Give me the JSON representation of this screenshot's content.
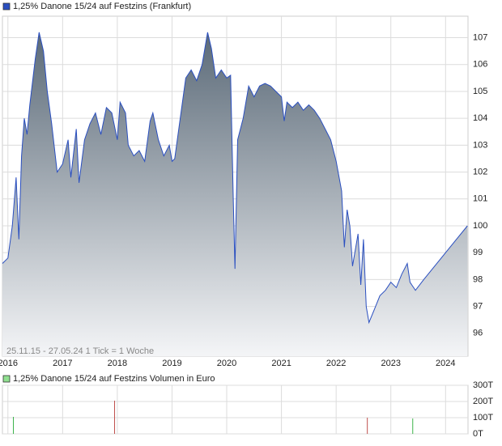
{
  "chart_data": [
    {
      "type": "area",
      "series": [
        {
          "name": "1,25% Danone 15/24 auf Festzins (Frankfurt)",
          "color": "#2a4fc0",
          "values": [
            98.6,
            98.8,
            100.0,
            101.8,
            99.5,
            102.6,
            104.0,
            103.4,
            104.5,
            106.2,
            107.2,
            106.5,
            105.0,
            103.8,
            102.0,
            102.3,
            103.2,
            101.8,
            103.6,
            101.6,
            103.2,
            103.8,
            104.2,
            103.4,
            104.4,
            104.2,
            103.2,
            104.6,
            104.2,
            103.0,
            102.6,
            102.8,
            102.4,
            103.9,
            104.2,
            103.2,
            102.6,
            103.0,
            102.4,
            102.5,
            104.0,
            105.5,
            105.8,
            105.4,
            106.0,
            107.2,
            106.6,
            105.5,
            105.8,
            105.5,
            105.6,
            101.0,
            98.4,
            103.2,
            104.0,
            105.2,
            104.8,
            105.2,
            105.3,
            105.2,
            105.0,
            104.8,
            103.9,
            104.6,
            104.4,
            104.6,
            104.3,
            104.5,
            104.3,
            104.0,
            103.6,
            103.2,
            102.4,
            101.3,
            99.2,
            100.6,
            100.0,
            98.5,
            99.7,
            97.8,
            99.5,
            97.0,
            96.4,
            96.9,
            97.4,
            97.6,
            97.9,
            97.7,
            98.2,
            98.6,
            97.9,
            97.6,
            98.0,
            98.5,
            99.0,
            99.5,
            100.0
          ]
        }
      ],
      "x": [
        2015.9,
        2016.0,
        2016.08,
        2016.15,
        2016.2,
        2016.25,
        2016.3,
        2016.35,
        2016.4,
        2016.5,
        2016.57,
        2016.65,
        2016.72,
        2016.8,
        2016.9,
        2017.0,
        2017.1,
        2017.15,
        2017.25,
        2017.3,
        2017.4,
        2017.5,
        2017.6,
        2017.7,
        2017.8,
        2017.9,
        2018.0,
        2018.05,
        2018.15,
        2018.2,
        2018.3,
        2018.4,
        2018.5,
        2018.6,
        2018.65,
        2018.75,
        2018.85,
        2018.95,
        2019.0,
        2019.05,
        2019.15,
        2019.25,
        2019.35,
        2019.45,
        2019.55,
        2019.65,
        2019.72,
        2019.8,
        2019.9,
        2020.0,
        2020.07,
        2020.12,
        2020.15,
        2020.2,
        2020.3,
        2020.4,
        2020.5,
        2020.6,
        2020.7,
        2020.8,
        2020.9,
        2021.0,
        2021.05,
        2021.1,
        2021.2,
        2021.3,
        2021.4,
        2021.5,
        2021.6,
        2021.7,
        2021.8,
        2021.9,
        2022.0,
        2022.1,
        2022.15,
        2022.2,
        2022.25,
        2022.3,
        2022.4,
        2022.45,
        2022.5,
        2022.55,
        2022.6,
        2022.7,
        2022.8,
        2022.9,
        2023.0,
        2023.1,
        2023.2,
        2023.3,
        2023.35,
        2023.45,
        2023.6,
        2023.8,
        2024.0,
        2024.2,
        2024.4
      ],
      "xlim": [
        2015.9,
        2024.41
      ],
      "xticks": [
        2016,
        2017,
        2018,
        2019,
        2020,
        2021,
        2022,
        2023,
        2024
      ],
      "ylim": [
        95.15,
        107.8
      ],
      "yticks": [
        96,
        97,
        98,
        99,
        100,
        101,
        102,
        103,
        104,
        105,
        106,
        107
      ],
      "annotation": "25.11.15 - 27.05.24   1 Tick = 1 Woche",
      "grid": true
    },
    {
      "type": "bar",
      "series": [
        {
          "name": "1,25% Danone 15/24 auf Festzins Volumen in Euro",
          "color": "#90e090",
          "values": [
            105,
            205,
            100,
            95
          ],
          "colors": [
            "#3cb44b",
            "#c0504d",
            "#c0504d",
            "#3cb44b"
          ]
        }
      ],
      "x": [
        2016.1,
        2017.95,
        2022.57,
        2023.4
      ],
      "xlim": [
        2015.9,
        2024.41
      ],
      "xticks": [
        2016,
        2017,
        2018,
        2019,
        2020,
        2021,
        2022,
        2023,
        2024
      ],
      "ylim": [
        0,
        300
      ],
      "yticks": [
        {
          "value": 0,
          "label": "0T"
        },
        {
          "value": 100,
          "label": "100T"
        },
        {
          "value": 200,
          "label": "200T"
        },
        {
          "value": 300,
          "label": "300T"
        }
      ],
      "grid": true
    }
  ]
}
